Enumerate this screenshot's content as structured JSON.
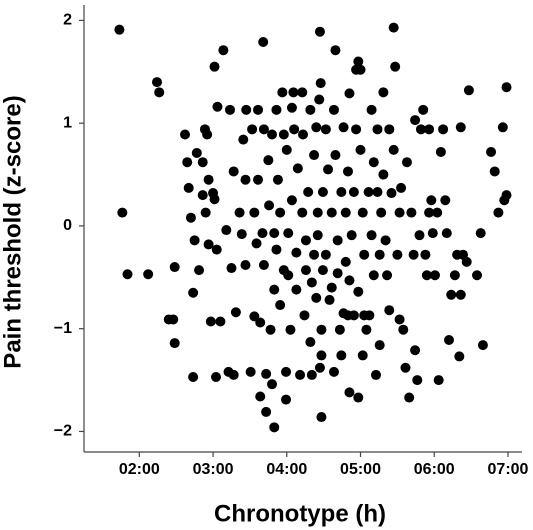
{
  "chart_data": {
    "type": "scatter",
    "x_label": "Chronotype (h)",
    "y_label": "Pain threshold (z-score)",
    "color": "#000000",
    "xlim": [
      1.25,
      7.19
    ],
    "ylim": [
      -2.2,
      2.15
    ],
    "xticks": [
      {
        "value": 2,
        "label": "02:00"
      },
      {
        "value": 3,
        "label": "03:00"
      },
      {
        "value": 4,
        "label": "04:00"
      },
      {
        "value": 5,
        "label": "05:00"
      },
      {
        "value": 6,
        "label": "06:00"
      },
      {
        "value": 7,
        "label": "07:00"
      }
    ],
    "yticks": [
      {
        "value": -2,
        "label": "−2"
      },
      {
        "value": -1,
        "label": "−1"
      },
      0,
      1,
      2
    ],
    "x": [
      1.73,
      1.77,
      1.84,
      2.12,
      2.24,
      2.27,
      2.4,
      2.46,
      2.48,
      2.48,
      2.62,
      2.65,
      2.67,
      2.7,
      2.73,
      2.73,
      2.75,
      2.78,
      2.81,
      2.86,
      2.86,
      2.89,
      2.9,
      2.92,
      2.94,
      2.94,
      2.97,
      3.0,
      3.02,
      3.02,
      3.04,
      3.05,
      3.06,
      3.1,
      3.14,
      3.18,
      3.21,
      3.23,
      3.25,
      3.28,
      3.28,
      3.31,
      3.36,
      3.39,
      3.41,
      3.44,
      3.44,
      3.45,
      3.51,
      3.53,
      3.56,
      3.56,
      3.59,
      3.61,
      3.61,
      3.64,
      3.64,
      3.67,
      3.68,
      3.69,
      3.69,
      3.72,
      3.72,
      3.75,
      3.76,
      3.78,
      3.8,
      3.8,
      3.83,
      3.83,
      3.83,
      3.86,
      3.86,
      3.88,
      3.91,
      3.91,
      3.94,
      3.96,
      3.96,
      3.99,
      3.99,
      4.0,
      4.02,
      4.02,
      4.05,
      4.07,
      4.07,
      4.09,
      4.1,
      4.13,
      4.13,
      4.15,
      4.18,
      4.21,
      4.21,
      4.22,
      4.24,
      4.26,
      4.26,
      4.29,
      4.32,
      4.32,
      4.34,
      4.34,
      4.37,
      4.37,
      4.4,
      4.4,
      4.42,
      4.42,
      4.44,
      4.45,
      4.45,
      4.46,
      4.47,
      4.47,
      4.47,
      4.49,
      4.49,
      4.53,
      4.53,
      4.56,
      4.58,
      4.61,
      4.61,
      4.64,
      4.64,
      4.66,
      4.66,
      4.69,
      4.69,
      4.72,
      4.74,
      4.74,
      4.77,
      4.77,
      4.8,
      4.8,
      4.83,
      4.83,
      4.85,
      4.85,
      4.85,
      4.88,
      4.91,
      4.91,
      4.94,
      4.94,
      4.97,
      4.97,
      4.97,
      5.0,
      5.0,
      5.03,
      5.03,
      5.05,
      5.05,
      5.08,
      5.11,
      5.12,
      5.15,
      5.15,
      5.18,
      5.18,
      5.21,
      5.23,
      5.23,
      5.26,
      5.26,
      5.28,
      5.31,
      5.31,
      5.34,
      5.36,
      5.39,
      5.39,
      5.42,
      5.45,
      5.45,
      5.47,
      5.5,
      5.53,
      5.53,
      5.55,
      5.58,
      5.61,
      5.63,
      5.66,
      5.69,
      5.72,
      5.74,
      5.74,
      5.77,
      5.8,
      5.82,
      5.85,
      5.88,
      5.9,
      5.93,
      5.93,
      5.96,
      5.98,
      6.01,
      6.04,
      6.06,
      6.09,
      6.12,
      6.15,
      6.17,
      6.2,
      6.23,
      6.28,
      6.31,
      6.34,
      6.36,
      6.36,
      6.39,
      6.44,
      6.47,
      6.58,
      6.63,
      6.66,
      6.77,
      6.82,
      6.87,
      6.93,
      6.95,
      6.98,
      6.98
    ],
    "values": [
      1.91,
      0.13,
      -0.47,
      -0.47,
      1.4,
      1.3,
      -0.91,
      -0.91,
      -0.4,
      -1.14,
      0.89,
      0.62,
      0.37,
      0.08,
      -0.65,
      -1.47,
      -0.14,
      0.71,
      -0.43,
      0.3,
      0.62,
      0.94,
      0.13,
      0.89,
      -0.18,
      0.45,
      -0.93,
      0.32,
      1.55,
      0.26,
      -1.47,
      -0.23,
      1.16,
      -0.93,
      1.71,
      -0.04,
      -1.42,
      1.13,
      -0.41,
      0.53,
      -1.45,
      -0.84,
      0.13,
      -0.08,
      0.84,
      0.45,
      -0.38,
      1.13,
      -1.42,
      0.94,
      0.13,
      -0.88,
      -0.17,
      0.45,
      1.13,
      -0.94,
      -1.66,
      -0.07,
      1.79,
      0.94,
      -0.38,
      -1.81,
      -1.44,
      0.64,
      0.2,
      -1.01,
      -1.54,
      0.89,
      -0.07,
      -0.62,
      -1.96,
      1.13,
      -0.23,
      0.45,
      -0.77,
      0.13,
      1.3,
      0.89,
      -0.43,
      -1.69,
      -1.42,
      0.74,
      -0.07,
      -0.48,
      -1.01,
      1.15,
      0.25,
      1.3,
      0.94,
      -0.26,
      -0.62,
      0.56,
      -1.45,
      0.13,
      1.3,
      0.89,
      -0.87,
      -0.14,
      -0.43,
      0.33,
      1.13,
      -1.13,
      -1.45,
      -0.55,
      0.69,
      -0.28,
      -0.7,
      0.96,
      0.13,
      -0.09,
      1.23,
      -1.38,
      1.89,
      1.39,
      -1.01,
      -1.26,
      -1.86,
      0.33,
      -0.43,
      0.94,
      -0.28,
      0.55,
      -0.72,
      0.13,
      -0.6,
      1.13,
      -1.42,
      1.71,
      0.69,
      -0.14,
      -0.46,
      -1.01,
      0.33,
      -1.26,
      0.96,
      -0.85,
      0.13,
      -0.35,
      0.53,
      -0.87,
      -1.62,
      1.29,
      -0.53,
      -0.09,
      0.33,
      -0.87,
      1.52,
      0.94,
      1.6,
      -0.64,
      -1.67,
      1.52,
      0.74,
      0.13,
      -1.26,
      -0.28,
      -0.87,
      -1.01,
      0.33,
      -0.87,
      1.13,
      -0.09,
      0.62,
      -0.48,
      -1.45,
      0.33,
      0.94,
      -0.28,
      -1.16,
      0.13,
      1.3,
      0.5,
      -0.14,
      -0.48,
      0.94,
      -0.82,
      0.32,
      0.74,
      1.93,
      1.55,
      -0.28,
      0.13,
      -0.91,
      0.37,
      -1.01,
      -1.38,
      0.62,
      -1.67,
      0.13,
      -0.28,
      1.03,
      -1.21,
      -1.5,
      -0.09,
      0.94,
      1.13,
      -0.28,
      -0.48,
      0.13,
      0.94,
      0.25,
      -0.07,
      -0.48,
      0.13,
      -1.5,
      0.72,
      0.94,
      0.25,
      -0.07,
      -1.11,
      -0.67,
      -0.48,
      -0.28,
      -1.27,
      -0.67,
      0.96,
      -0.28,
      -0.35,
      1.32,
      -0.48,
      -0.07,
      -1.16,
      0.72,
      0.53,
      0.13,
      0.96,
      0.25,
      1.35,
      0.3
    ]
  }
}
